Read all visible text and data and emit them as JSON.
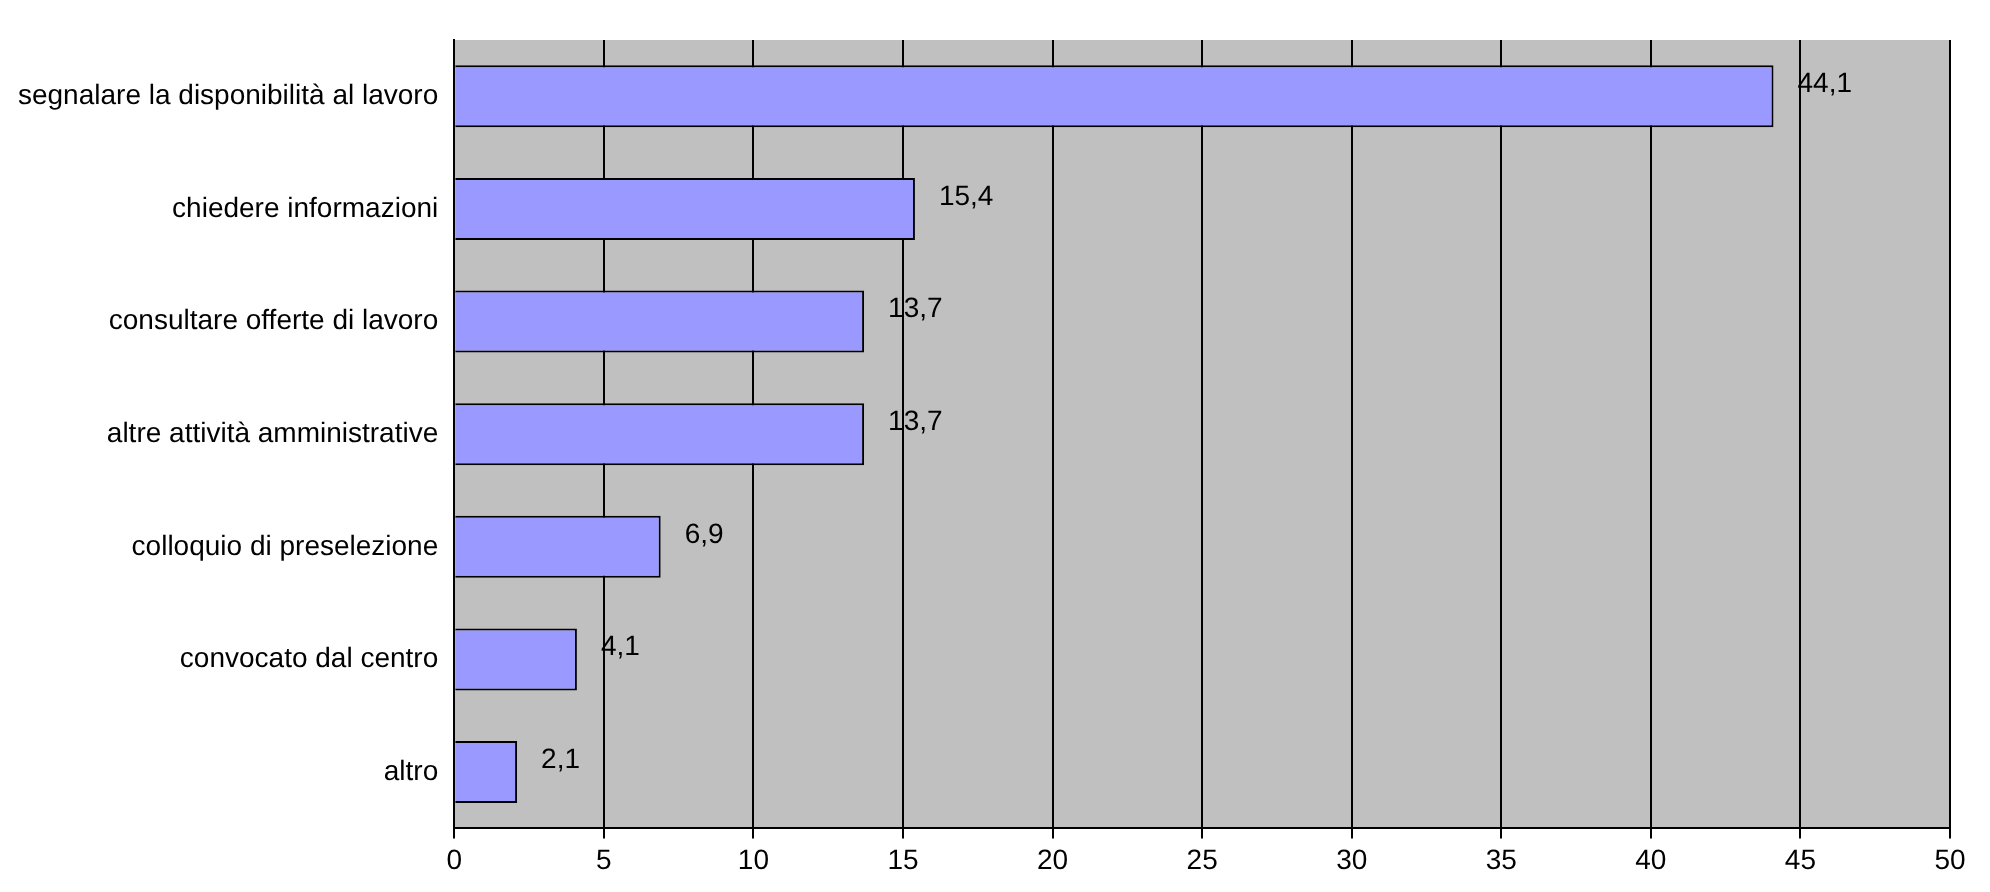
{
  "chart_data": {
    "type": "bar",
    "orientation": "horizontal",
    "categories": [
      "segnalare la disponibilità al lavoro",
      "chiedere informazioni",
      "consultare offerte di lavoro",
      "altre attività amministrative",
      "colloquio di preselezione",
      "convocato dal centro",
      "altro"
    ],
    "values": [
      44.1,
      15.4,
      13.7,
      13.7,
      6.9,
      4.1,
      2.1
    ],
    "value_labels": [
      "44,1",
      "15,4",
      "13,7",
      "13,7",
      "6,9",
      "4,1",
      "2,1"
    ],
    "color": "#9999ff",
    "xlim": [
      0,
      50
    ],
    "xticks": [
      0,
      5,
      10,
      15,
      20,
      25,
      30,
      35,
      40,
      45,
      50
    ],
    "grid": "x",
    "legend": false
  }
}
